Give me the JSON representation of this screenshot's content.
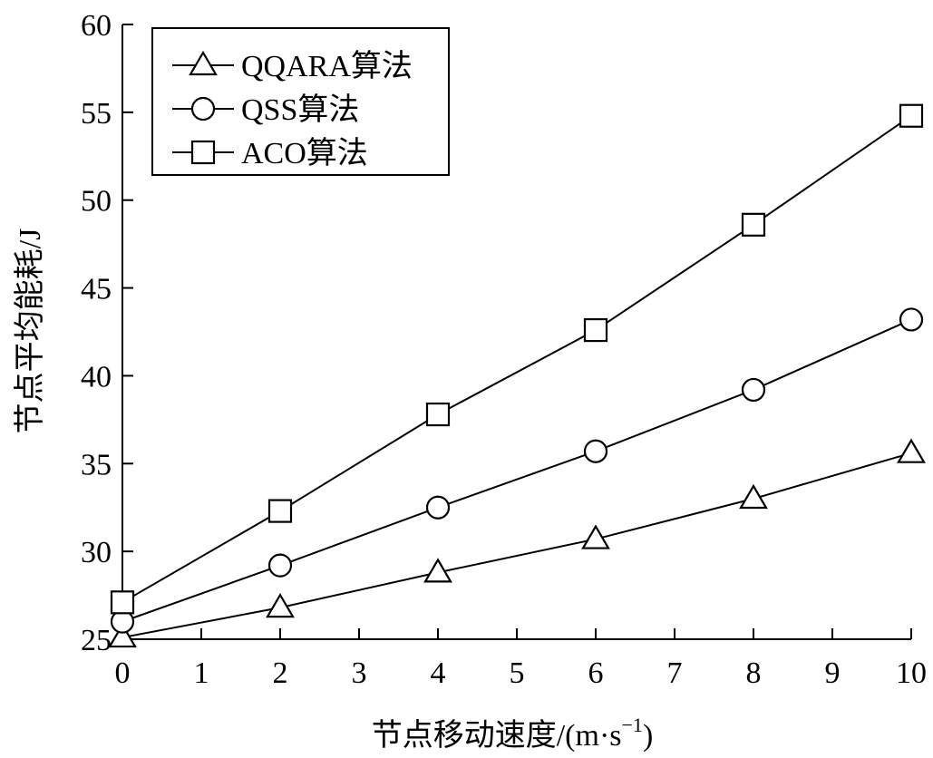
{
  "chart_data": {
    "type": "line",
    "xlabel": "节点移动速度/(m·s",
    "xlabel_sup": "−1",
    "xlabel_close": ")",
    "ylabel": "节点平均能耗/J",
    "xlim": [
      0,
      10
    ],
    "ylim": [
      25,
      60
    ],
    "xticks": [
      0,
      1,
      2,
      3,
      4,
      5,
      6,
      7,
      8,
      9,
      10
    ],
    "yticks": [
      25,
      30,
      35,
      40,
      45,
      50,
      55,
      60
    ],
    "x": [
      0,
      2,
      4,
      6,
      8,
      10
    ],
    "series": [
      {
        "name": "QQARA算法",
        "marker": "triangle",
        "values": [
          25.1,
          26.8,
          28.8,
          30.7,
          33.0,
          35.6
        ]
      },
      {
        "name": "QSS算法",
        "marker": "circle",
        "values": [
          26.0,
          29.2,
          32.5,
          35.7,
          39.2,
          43.2
        ]
      },
      {
        "name": "ACO算法",
        "marker": "square",
        "values": [
          27.1,
          32.3,
          37.8,
          42.6,
          48.6,
          54.8
        ]
      }
    ],
    "legend_position": "top-left",
    "grid": false,
    "line_color": "#000000"
  }
}
